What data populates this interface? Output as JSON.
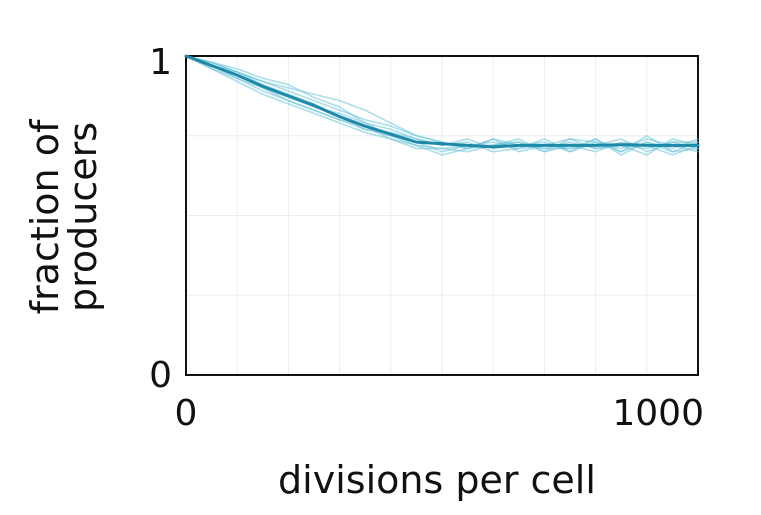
{
  "chart_data": {
    "type": "line",
    "title": "",
    "xlabel": "divisions per cell",
    "ylabel_lines": [
      "fraction of",
      "producers"
    ],
    "xlim": [
      0,
      1000
    ],
    "ylim": [
      0,
      1
    ],
    "x_tick_labels": [
      "0",
      "1000"
    ],
    "y_tick_labels": [
      "0",
      "1"
    ],
    "grid": true,
    "colors": {
      "mean_series": "#1e89a8",
      "replicate_series": "#67c3d8",
      "frame": "#111111",
      "grid": "#e6eef2"
    },
    "mean_series": {
      "x": [
        0,
        50,
        100,
        150,
        200,
        250,
        300,
        350,
        400,
        450,
        500,
        550,
        600,
        650,
        700,
        750,
        800,
        850,
        900,
        950,
        1000
      ],
      "y": [
        1.0,
        0.97,
        0.94,
        0.905,
        0.875,
        0.845,
        0.81,
        0.78,
        0.755,
        0.73,
        0.725,
        0.72,
        0.715,
        0.72,
        0.72,
        0.72,
        0.72,
        0.722,
        0.72,
        0.72,
        0.72
      ]
    },
    "replicate_series": [
      {
        "x": [
          0,
          50,
          100,
          150,
          200,
          250,
          300,
          350,
          400,
          450,
          500,
          550,
          600,
          650,
          700,
          750,
          800,
          850,
          900,
          950,
          1000
        ],
        "y": [
          1.0,
          0.98,
          0.95,
          0.92,
          0.9,
          0.88,
          0.86,
          0.83,
          0.79,
          0.75,
          0.73,
          0.71,
          0.72,
          0.73,
          0.7,
          0.74,
          0.73,
          0.7,
          0.75,
          0.7,
          0.73
        ]
      },
      {
        "x": [
          0,
          50,
          100,
          150,
          200,
          250,
          300,
          350,
          400,
          450,
          500,
          550,
          600,
          650,
          700,
          750,
          800,
          850,
          900,
          950,
          1000
        ],
        "y": [
          1.0,
          0.96,
          0.93,
          0.89,
          0.86,
          0.83,
          0.8,
          0.78,
          0.74,
          0.72,
          0.69,
          0.71,
          0.74,
          0.72,
          0.71,
          0.73,
          0.71,
          0.72,
          0.69,
          0.74,
          0.72
        ]
      },
      {
        "x": [
          0,
          50,
          100,
          150,
          200,
          250,
          300,
          350,
          400,
          450,
          500,
          550,
          600,
          650,
          700,
          750,
          800,
          850,
          900,
          950,
          1000
        ],
        "y": [
          1.0,
          0.97,
          0.95,
          0.91,
          0.88,
          0.85,
          0.81,
          0.77,
          0.76,
          0.74,
          0.72,
          0.73,
          0.7,
          0.71,
          0.74,
          0.7,
          0.74,
          0.69,
          0.73,
          0.71,
          0.74
        ]
      },
      {
        "x": [
          0,
          50,
          100,
          150,
          200,
          250,
          300,
          350,
          400,
          450,
          500,
          550,
          600,
          650,
          700,
          750,
          800,
          850,
          900,
          950,
          1000
        ],
        "y": [
          1.0,
          0.98,
          0.96,
          0.93,
          0.91,
          0.87,
          0.84,
          0.79,
          0.75,
          0.73,
          0.7,
          0.72,
          0.73,
          0.71,
          0.72,
          0.71,
          0.72,
          0.74,
          0.7,
          0.73,
          0.71
        ]
      },
      {
        "x": [
          0,
          50,
          100,
          150,
          200,
          250,
          300,
          350,
          400,
          450,
          500,
          550,
          600,
          650,
          700,
          750,
          800,
          850,
          900,
          950,
          1000
        ],
        "y": [
          1.0,
          0.96,
          0.92,
          0.88,
          0.85,
          0.82,
          0.79,
          0.76,
          0.74,
          0.71,
          0.71,
          0.7,
          0.72,
          0.74,
          0.7,
          0.72,
          0.7,
          0.73,
          0.72,
          0.69,
          0.72
        ]
      },
      {
        "x": [
          0,
          50,
          100,
          150,
          200,
          250,
          300,
          350,
          400,
          450,
          500,
          550,
          600,
          650,
          700,
          750,
          800,
          850,
          900,
          950,
          1000
        ],
        "y": [
          1.0,
          0.97,
          0.94,
          0.9,
          0.87,
          0.84,
          0.82,
          0.79,
          0.77,
          0.74,
          0.72,
          0.74,
          0.71,
          0.72,
          0.73,
          0.7,
          0.73,
          0.71,
          0.74,
          0.72,
          0.7
        ]
      },
      {
        "x": [
          0,
          50,
          100,
          150,
          200,
          250,
          300,
          350,
          400,
          450,
          500,
          550,
          600,
          650,
          700,
          750,
          800,
          850,
          900,
          950,
          1000
        ],
        "y": [
          1.0,
          0.98,
          0.95,
          0.92,
          0.89,
          0.86,
          0.83,
          0.8,
          0.78,
          0.75,
          0.73,
          0.71,
          0.74,
          0.7,
          0.72,
          0.74,
          0.71,
          0.72,
          0.71,
          0.73,
          0.73
        ]
      },
      {
        "x": [
          0,
          50,
          100,
          150,
          200,
          250,
          300,
          350,
          400,
          450,
          500,
          550,
          600,
          650,
          700,
          750,
          800,
          850,
          900,
          950,
          1000
        ],
        "y": [
          1.0,
          0.97,
          0.93,
          0.9,
          0.86,
          0.83,
          0.8,
          0.77,
          0.75,
          0.72,
          0.71,
          0.72,
          0.72,
          0.73,
          0.71,
          0.71,
          0.74,
          0.7,
          0.73,
          0.7,
          0.71
        ]
      }
    ]
  }
}
